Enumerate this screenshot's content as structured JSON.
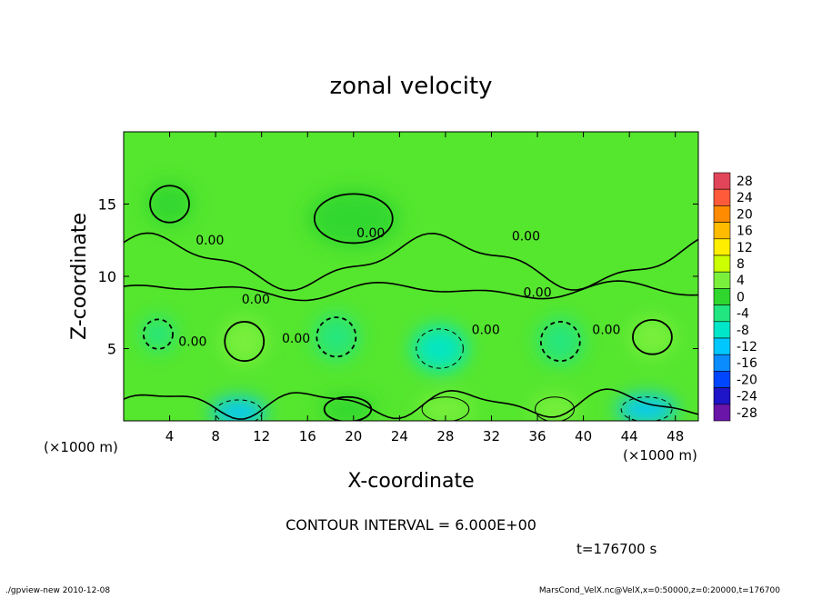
{
  "chart_data": {
    "type": "heatmap",
    "title": "zonal velocity",
    "xlabel": "X-coordinate",
    "ylabel": "Z-coordinate",
    "x_unit": "(×1000 m)",
    "y_unit": "(×1000 m)",
    "xlim": [
      0,
      50
    ],
    "ylim": [
      0,
      20
    ],
    "x_ticks": [
      4,
      8,
      12,
      16,
      20,
      24,
      28,
      32,
      36,
      40,
      44,
      48
    ],
    "y_ticks": [
      5,
      10,
      15
    ],
    "contour_interval_text": "CONTOUR INTERVAL = 6.000E+00",
    "contour_labels": [
      {
        "text": "0.00",
        "x": 7.5,
        "z": 12.2
      },
      {
        "text": "0.00",
        "x": 21.5,
        "z": 12.7
      },
      {
        "text": "0.00",
        "x": 35.0,
        "z": 12.5
      },
      {
        "text": "0.00",
        "x": 11.5,
        "z": 8.1
      },
      {
        "text": "0.00",
        "x": 36.0,
        "z": 8.6
      },
      {
        "text": "0.00",
        "x": 6.0,
        "z": 5.2
      },
      {
        "text": "0.00",
        "x": 15.0,
        "z": 5.4
      },
      {
        "text": "0.00",
        "x": 31.5,
        "z": 6.0
      },
      {
        "text": "0.00",
        "x": 42.0,
        "z": 6.0
      }
    ],
    "colorbar": {
      "levels": [
        28,
        24,
        20,
        16,
        12,
        8,
        4,
        0,
        -4,
        -8,
        -12,
        -16,
        -20,
        -24,
        -28
      ],
      "colors": [
        "#e2455a",
        "#ff5a3a",
        "#ff8c00",
        "#ffbb00",
        "#ffee00",
        "#ccff00",
        "#7af03c",
        "#2ed62e",
        "#22e680",
        "#00e6c8",
        "#00c8ff",
        "#0a8cff",
        "#0046ff",
        "#1e14c8",
        "#6a14a8"
      ]
    },
    "anomalies": [
      {
        "x": 10.5,
        "z": 5.5,
        "value": 5,
        "sx": 2.0,
        "sz": 1.6
      },
      {
        "x": 18.5,
        "z": 5.8,
        "value": -3,
        "sx": 2.0,
        "sz": 1.6
      },
      {
        "x": 27.5,
        "z": 5.0,
        "value": -8,
        "sx": 2.4,
        "sz": 1.6
      },
      {
        "x": 38.0,
        "z": 5.5,
        "value": -3,
        "sx": 2.0,
        "sz": 1.6
      },
      {
        "x": 46.0,
        "z": 5.8,
        "value": 5,
        "sx": 2.0,
        "sz": 1.4
      },
      {
        "x": 3.0,
        "z": 6.0,
        "value": -2,
        "sx": 1.5,
        "sz": 1.2
      },
      {
        "x": 10.0,
        "z": 0.6,
        "value": -10,
        "sx": 2.4,
        "sz": 1.0
      },
      {
        "x": 19.5,
        "z": 0.8,
        "value": 3,
        "sx": 2.4,
        "sz": 1.0
      },
      {
        "x": 28.0,
        "z": 0.8,
        "value": 7,
        "sx": 2.4,
        "sz": 1.0
      },
      {
        "x": 37.5,
        "z": 0.8,
        "value": 6,
        "sx": 2.0,
        "sz": 1.0
      },
      {
        "x": 45.5,
        "z": 0.8,
        "value": -12,
        "sx": 2.6,
        "sz": 1.0
      },
      {
        "x": 20.0,
        "z": 14.0,
        "value": 2,
        "sx": 4.0,
        "sz": 2.0
      },
      {
        "x": 4.0,
        "z": 15.0,
        "value": 1,
        "sx": 2.0,
        "sz": 1.5
      }
    ]
  },
  "time_label": "t=176700 s",
  "footer_left": "./gpview-new   2010-12-08",
  "footer_right": "MarsCond_VelX.nc@VelX,x=0:50000,z=0:20000,t=176700"
}
